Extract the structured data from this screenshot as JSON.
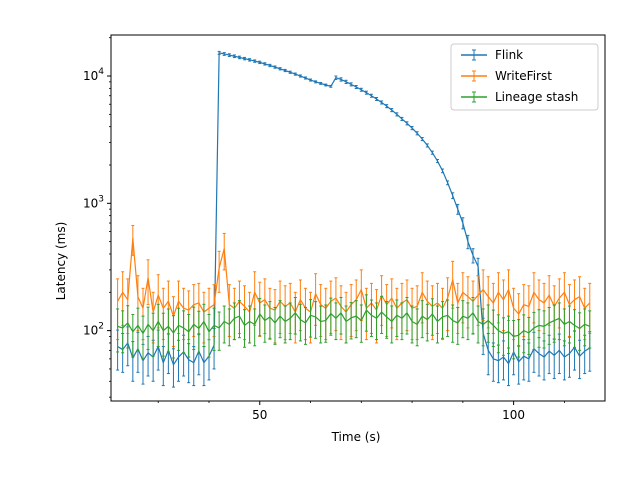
{
  "chart_data": {
    "type": "line",
    "title": "",
    "xlabel": "Time (s)",
    "ylabel": "Latency (ms)",
    "yscale": "log",
    "xlim": [
      20.7,
      118.0
    ],
    "ylim": [
      28,
      21000
    ],
    "x_ticks": [
      {
        "value": 50,
        "label": "50"
      },
      {
        "value": 100,
        "label": "100"
      }
    ],
    "y_ticks": [
      {
        "value": 100,
        "base": "10",
        "exp": "2"
      },
      {
        "value": 1000,
        "base": "10",
        "exp": "3"
      },
      {
        "value": 10000,
        "base": "10",
        "exp": "4"
      }
    ],
    "grid": false,
    "error_bars": true,
    "legend": {
      "position": "top-right"
    },
    "series": [
      {
        "name": "Flink",
        "color": "#1f77b4",
        "segments": [
          {
            "x_start": 22,
            "x_end": 41,
            "values": [
              75,
              71,
              80,
              61,
              72,
              58,
              67,
              62,
              75,
              56,
              70,
              54,
              62,
              68,
              59,
              56,
              69,
              56,
              63,
              77
            ],
            "err": [
              26,
              24,
              27,
              21,
              25,
              20,
              23,
              22,
              26,
              19,
              24,
              18,
              22,
              24,
              20,
              19,
              24,
              19,
              22,
              27
            ]
          },
          {
            "x_start": 42,
            "x_end": 64,
            "values": [
              15200,
              14900,
              14600,
              14300,
              14000,
              13700,
              13400,
              13100,
              12800,
              12450,
              12100,
              11750,
              11400,
              11050,
              10700,
              10350,
              10000,
              9650,
              9300,
              9000,
              8750,
              8500,
              8300
            ],
            "err": [
              400,
              380,
              360,
              340,
              320,
              300,
              290,
              280,
              270,
              260,
              250,
              240,
              230,
              220,
              210,
              200,
              190,
              180,
              170,
              160,
              150,
              140,
              140
            ]
          },
          {
            "x_start": 65,
            "x_end": 93,
            "values": [
              9700,
              9400,
              9000,
              8600,
              8200,
              7800,
              7400,
              7000,
              6600,
              6200,
              5800,
              5400,
              5000,
              4600,
              4250,
              3900,
              3550,
              3200,
              2850,
              2500,
              2150,
              1800,
              1450,
              1150,
              900,
              700,
              500,
              390,
              320
            ],
            "err": [
              300,
              280,
              260,
              240,
              220,
              210,
              200,
              190,
              180,
              170,
              160,
              150,
              140,
              130,
              120,
              110,
              100,
              90,
              80,
              70,
              60,
              60,
              50,
              60,
              80,
              70,
              60,
              50,
              50
            ]
          },
          {
            "x_start": 94,
            "x_end": 115,
            "values": [
              95,
              70,
              60,
              58,
              62,
              55,
              68,
              57,
              63,
              60,
              72,
              66,
              62,
              69,
              64,
              70,
              62,
              66,
              74,
              63,
              69,
              73
            ],
            "err": [
              30,
              25,
              20,
              19,
              21,
              18,
              23,
              19,
              22,
              20,
              25,
              22,
              21,
              23,
              22,
              24,
              21,
              23,
              25,
              21,
              23,
              25
            ]
          }
        ]
      },
      {
        "name": "WriteFirst",
        "color": "#ff7f0e",
        "segments": [
          {
            "x_start": 22,
            "x_end": 41,
            "values": [
              170,
              200,
              175,
              530,
              185,
              150,
              260,
              140,
              190,
              150,
              170,
              130,
              170,
              150,
              145,
              160,
              165,
              140,
              150,
              160
            ],
            "err": [
              85,
              90,
              80,
              140,
              85,
              65,
              100,
              60,
              85,
              65,
              75,
              55,
              75,
              65,
              60,
              70,
              70,
              60,
              65,
              70
            ]
          },
          {
            "x_start": 42,
            "x_end": 115,
            "values": [
              310,
              440,
              160,
              150,
              170,
              155,
              140,
              200,
              165,
              175,
              150,
              145,
              170,
              155,
              165,
              140,
              175,
              150,
              140,
              195,
              160,
              150,
              170,
              180,
              155,
              140,
              160,
              175,
              210,
              150,
              165,
              145,
              190,
              160,
              180,
              150,
              165,
              175,
              150,
              155,
              200,
              170,
              155,
              165,
              150,
              180,
              250,
              165,
              200,
              185,
              170,
              190,
              210,
              185,
              165,
              200,
              175,
              210,
              150,
              135,
              160,
              155,
              200,
              175,
              165,
              190,
              155,
              180,
              200,
              160,
              175,
              185,
              150,
              165
            ],
            "err": [
              110,
              140,
              70,
              65,
              75,
              70,
              60,
              90,
              75,
              80,
              65,
              65,
              75,
              70,
              70,
              60,
              75,
              65,
              60,
              85,
              70,
              65,
              75,
              80,
              70,
              60,
              70,
              75,
              90,
              65,
              70,
              65,
              80,
              70,
              75,
              65,
              70,
              75,
              65,
              70,
              85,
              75,
              70,
              70,
              65,
              80,
              100,
              70,
              85,
              80,
              75,
              80,
              90,
              80,
              70,
              85,
              75,
              90,
              65,
              60,
              70,
              70,
              85,
              75,
              70,
              80,
              70,
              75,
              85,
              70,
              75,
              80,
              65,
              70
            ]
          }
        ]
      },
      {
        "name": "Lineage stash",
        "color": "#2ca02c",
        "segments": [
          {
            "x_start": 22,
            "x_end": 41,
            "values": [
              108,
              105,
              115,
              98,
              110,
              95,
              112,
              100,
              118,
              100,
              108,
              96,
              110,
              105,
              98,
              112,
              104,
              118,
              98,
              110
            ],
            "err": [
              40,
              38,
              42,
              36,
              40,
              35,
              41,
              37,
              43,
              37,
              40,
              35,
              40,
              38,
              36,
              41,
              38,
              43,
              36,
              40
            ]
          },
          {
            "x_start": 42,
            "x_end": 115,
            "values": [
              105,
              118,
              112,
              125,
              130,
              110,
              118,
              112,
              135,
              120,
              128,
              115,
              130,
              118,
              125,
              138,
              122,
              115,
              132,
              128,
              118,
              120,
              136,
              125,
              138,
              118,
              126,
              130,
              120,
              145,
              132,
              125,
              140,
              128,
              118,
              132,
              125,
              138,
              118,
              112,
              130,
              122,
              135,
              118,
              128,
              132,
              120,
              115,
              130,
              125,
              138,
              118,
              112,
              120,
              110,
              100,
              95,
              98,
              90,
              92,
              100,
              96,
              105,
              110,
              108,
              115,
              120,
              125,
              112,
              118,
              110,
              104,
              112,
              108
            ],
            "err": [
              35,
              38,
              36,
              40,
              42,
              36,
              38,
              36,
              44,
              39,
              41,
              37,
              42,
              38,
              40,
              44,
              39,
              37,
              43,
              41,
              38,
              39,
              44,
              40,
              44,
              38,
              40,
              42,
              39,
              46,
              42,
              40,
              45,
              41,
              38,
              42,
              40,
              44,
              38,
              36,
              42,
              39,
              43,
              38,
              41,
              42,
              39,
              37,
              42,
              40,
              44,
              38,
              36,
              39,
              35,
              33,
              31,
              32,
              30,
              30,
              33,
              31,
              34,
              36,
              35,
              37,
              39,
              40,
              36,
              38,
              36,
              34,
              36,
              35
            ]
          }
        ]
      }
    ]
  }
}
